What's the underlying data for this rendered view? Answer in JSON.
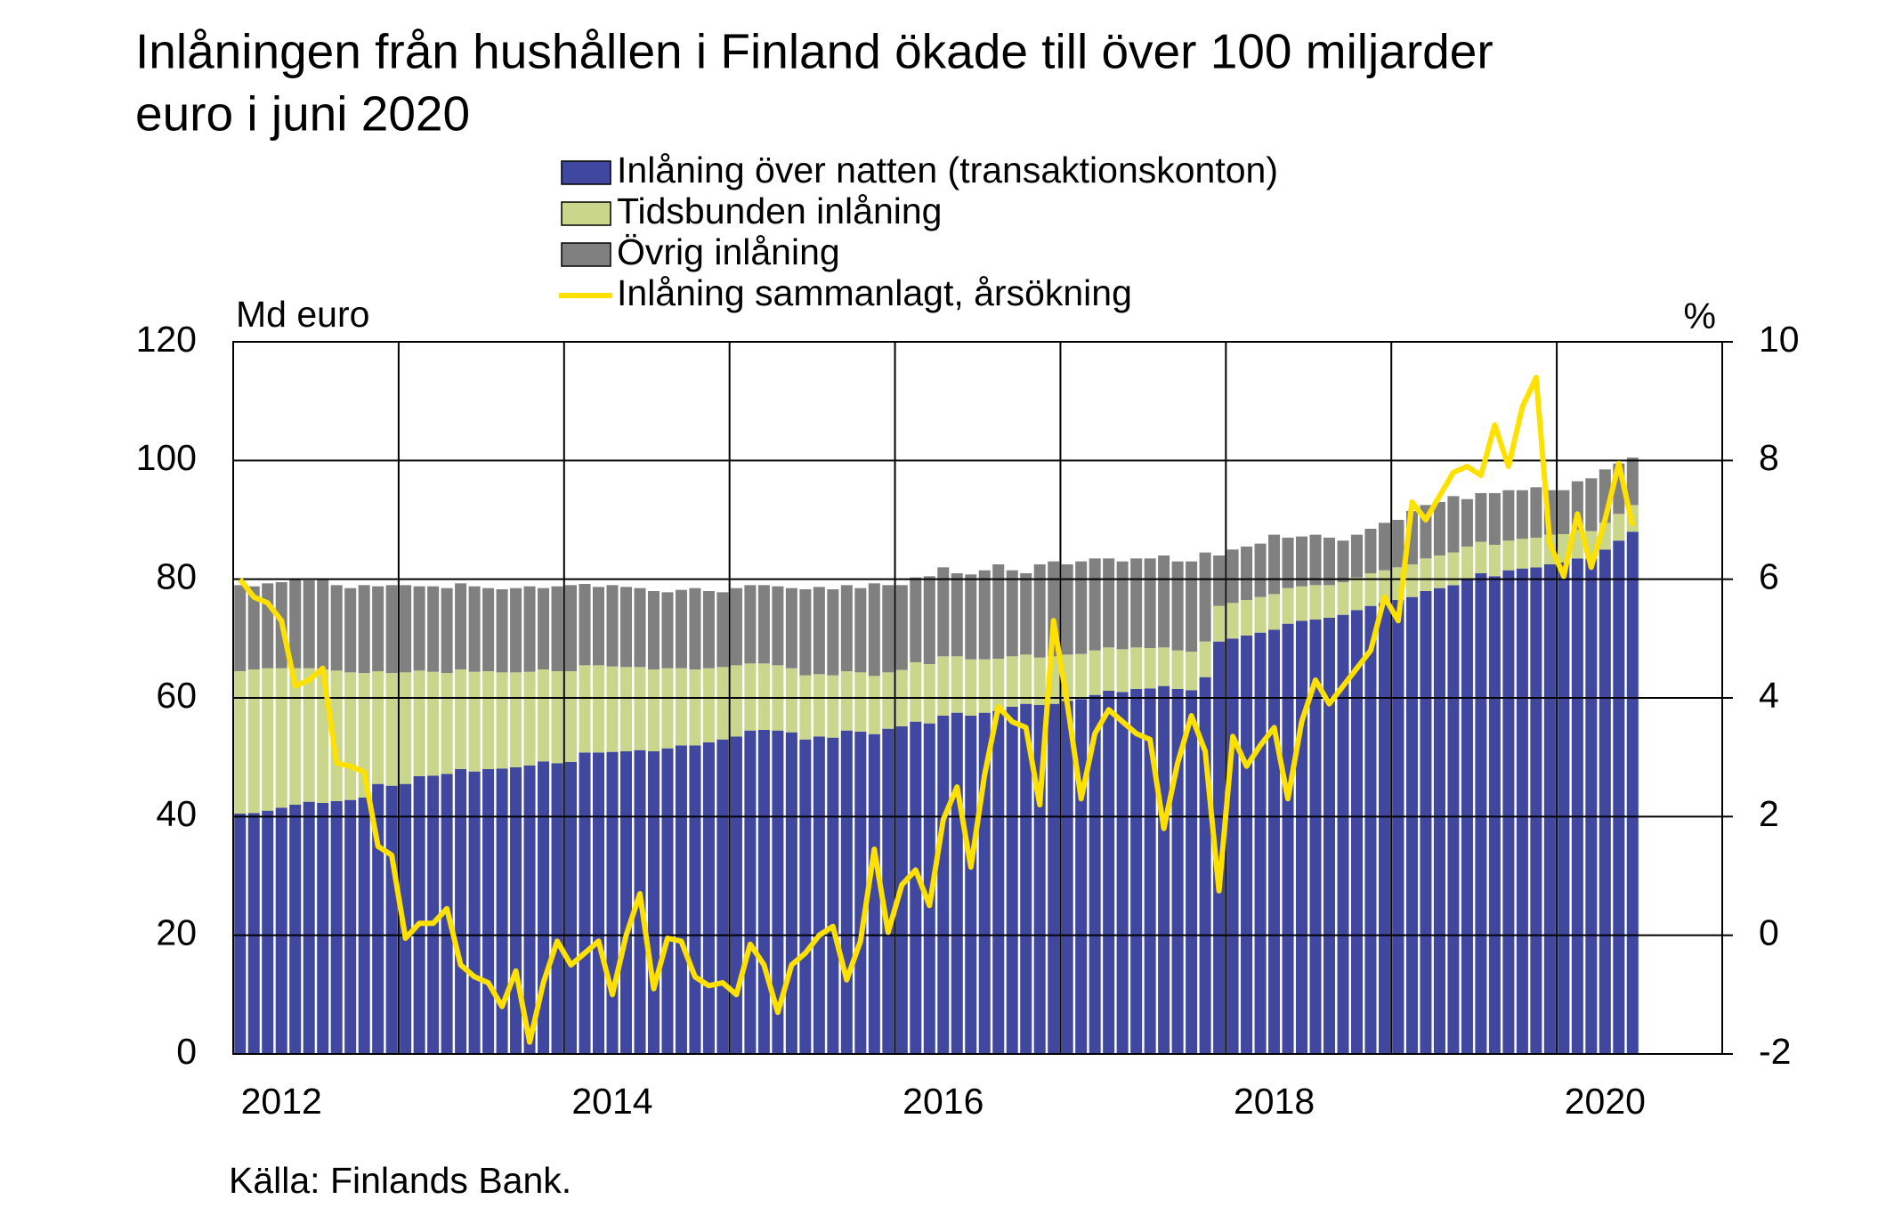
{
  "chart_data": {
    "type": "bar",
    "stacked": true,
    "title": [
      "Inlåningen från hushållen i Finland ökade till över 100 miljarder",
      "euro i juni 2020"
    ],
    "y_label": "Md euro",
    "y2_label": "%",
    "source": "Källa: Finlands Bank.",
    "categories": [
      null,
      null,
      null,
      "2012",
      null,
      null,
      null,
      null,
      null,
      null,
      null,
      null,
      null,
      null,
      null,
      null,
      null,
      null,
      null,
      null,
      null,
      null,
      null,
      null,
      null,
      null,
      null,
      "2014",
      null,
      null,
      null,
      null,
      null,
      null,
      null,
      null,
      null,
      null,
      null,
      null,
      null,
      null,
      null,
      null,
      null,
      null,
      null,
      null,
      null,
      null,
      null,
      "2016",
      null,
      null,
      null,
      null,
      null,
      null,
      null,
      null,
      null,
      null,
      null,
      null,
      null,
      null,
      null,
      null,
      null,
      null,
      null,
      null,
      null,
      null,
      null,
      "2018",
      null,
      null,
      null,
      null,
      null,
      null,
      null,
      null,
      null,
      null,
      null,
      null,
      null,
      null,
      null,
      null,
      null,
      null,
      null,
      null,
      null,
      null,
      null,
      "2020",
      null,
      null
    ],
    "ylim": [
      0,
      120
    ],
    "yticks": [
      0,
      20,
      40,
      60,
      80,
      100,
      120
    ],
    "y2lim": [
      -2,
      10
    ],
    "y2ticks": [
      -2,
      0,
      2,
      4,
      6,
      8,
      10
    ],
    "grid": true,
    "series": [
      {
        "name": "Inlåning över natten (transaktionskonton)",
        "type": "bar",
        "color": "#3f479f",
        "values": [
          40.5,
          40.6,
          41.0,
          41.5,
          42.0,
          42.5,
          42.3,
          42.6,
          42.8,
          43.2,
          45.5,
          45.2,
          45.5,
          46.8,
          46.9,
          47.2,
          48.0,
          47.6,
          48.0,
          48.1,
          48.3,
          48.6,
          49.3,
          49.0,
          49.2,
          50.8,
          50.8,
          50.9,
          51.0,
          51.2,
          51.0,
          51.5,
          52.0,
          52.0,
          52.5,
          53.0,
          53.5,
          54.5,
          54.6,
          54.5,
          54.2,
          53.0,
          53.5,
          53.3,
          54.5,
          54.3,
          53.9,
          54.8,
          55.2,
          56.0,
          55.7,
          57.0,
          57.5,
          57.0,
          57.5,
          57.8,
          58.5,
          59.0,
          58.8,
          59.0,
          59.5,
          59.8,
          60.5,
          61.2,
          61.0,
          61.5,
          61.6,
          62.0,
          61.5,
          61.3,
          63.5,
          69.5,
          70.0,
          70.5,
          71.0,
          71.5,
          72.5,
          73.0,
          73.2,
          73.5,
          74.0,
          74.8,
          75.5,
          76.0,
          76.5,
          77.0,
          78.0,
          78.5,
          79.0,
          80.0,
          81.0,
          80.5,
          81.5,
          81.8,
          82.0,
          82.5,
          82.8,
          83.5,
          83.5,
          85.0,
          86.5,
          88.0
        ]
      },
      {
        "name": "Tidsbunden inlåning",
        "type": "bar",
        "color": "#c9d68b",
        "values": [
          24.0,
          24.2,
          24.0,
          23.5,
          23.0,
          22.5,
          22.5,
          22.0,
          21.5,
          21.0,
          19.0,
          19.0,
          18.8,
          17.8,
          17.5,
          17.0,
          16.8,
          16.8,
          16.5,
          16.2,
          16.0,
          15.8,
          15.5,
          15.5,
          15.3,
          14.7,
          14.7,
          14.4,
          14.2,
          14.0,
          13.8,
          13.5,
          13.0,
          12.8,
          12.5,
          12.2,
          12.0,
          11.3,
          11.2,
          11.0,
          10.8,
          10.8,
          10.5,
          10.5,
          10.0,
          10.0,
          9.8,
          9.5,
          9.5,
          10.0,
          10.0,
          10.0,
          9.5,
          9.5,
          9.0,
          8.8,
          8.5,
          8.3,
          8.0,
          8.0,
          7.8,
          7.6,
          7.5,
          7.3,
          7.2,
          7.0,
          6.8,
          6.5,
          6.5,
          6.5,
          6.0,
          6.0,
          6.0,
          6.0,
          6.0,
          6.0,
          6.0,
          5.8,
          5.8,
          5.5,
          5.5,
          5.5,
          5.5,
          5.5,
          5.5,
          5.5,
          5.5,
          5.5,
          5.5,
          5.5,
          5.3,
          5.3,
          5.0,
          5.0,
          5.0,
          5.0,
          4.8,
          4.8,
          4.6,
          4.5,
          4.5,
          4.5
        ]
      },
      {
        "name": "Övrig inlåning",
        "type": "bar",
        "color": "#808080",
        "values": [
          14.5,
          14.0,
          14.3,
          14.5,
          15.0,
          14.8,
          15.2,
          14.4,
          14.2,
          14.8,
          14.3,
          14.8,
          14.7,
          14.2,
          14.4,
          14.3,
          14.5,
          14.4,
          14.0,
          14.0,
          14.2,
          14.4,
          13.7,
          14.3,
          14.5,
          13.7,
          13.2,
          13.7,
          13.5,
          13.3,
          13.2,
          12.8,
          13.2,
          13.7,
          13.0,
          12.6,
          13.0,
          13.2,
          13.2,
          13.3,
          13.5,
          14.5,
          14.7,
          14.5,
          14.5,
          14.2,
          15.6,
          14.7,
          14.3,
          14.3,
          14.8,
          15.0,
          14.0,
          14.3,
          15.0,
          15.9,
          14.5,
          13.7,
          15.7,
          16.0,
          15.2,
          15.6,
          15.5,
          15.0,
          14.8,
          15.0,
          15.1,
          15.5,
          15.0,
          15.2,
          15.0,
          8.5,
          9.0,
          9.0,
          9.0,
          10.0,
          8.5,
          8.4,
          8.5,
          8.0,
          7.0,
          7.2,
          7.5,
          8.0,
          8.0,
          9.0,
          9.0,
          9.0,
          9.5,
          8.0,
          8.2,
          8.7,
          8.5,
          8.2,
          8.5,
          7.5,
          7.4,
          8.2,
          8.9,
          9.0,
          8.5,
          8.0
        ]
      },
      {
        "name": "Inlåning sammanlagt, årsökning",
        "type": "line",
        "axis": "y2",
        "color": "#ffe100",
        "values": [
          6.0,
          5.7,
          5.6,
          5.3,
          4.2,
          4.3,
          4.5,
          2.9,
          2.85,
          2.75,
          1.5,
          1.35,
          -0.05,
          0.2,
          0.2,
          0.45,
          -0.5,
          -0.7,
          -0.8,
          -1.2,
          -0.6,
          -1.8,
          -0.8,
          -0.1,
          -0.5,
          -0.3,
          -0.1,
          -1.0,
          0.0,
          0.7,
          -0.9,
          -0.05,
          -0.1,
          -0.7,
          -0.85,
          -0.8,
          -1.0,
          -0.15,
          -0.5,
          -1.3,
          -0.5,
          -0.3,
          0.0,
          0.15,
          -0.75,
          -0.1,
          1.45,
          0.05,
          0.85,
          1.1,
          0.5,
          1.95,
          2.5,
          1.15,
          2.7,
          3.85,
          3.6,
          3.5,
          2.2,
          5.3,
          3.9,
          2.3,
          3.4,
          3.8,
          3.6,
          3.4,
          3.3,
          1.8,
          2.9,
          3.7,
          3.1,
          0.75,
          3.35,
          2.85,
          3.2,
          3.5,
          2.3,
          3.6,
          4.3,
          3.9,
          4.2,
          4.5,
          4.8,
          5.7,
          5.3,
          7.3,
          7.0,
          7.4,
          7.8,
          7.9,
          7.75,
          8.6,
          7.9,
          8.9,
          9.4,
          6.6,
          6.05,
          7.1,
          6.2,
          7.0,
          7.95,
          6.9
        ]
      }
    ]
  }
}
